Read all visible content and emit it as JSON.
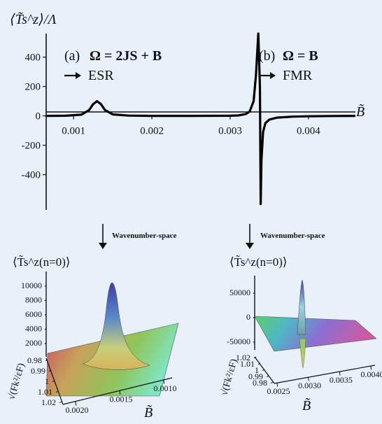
{
  "figure": {
    "background": "#e8f1fa",
    "main_ylabel": "⟨T̃s^z⟩/Λ",
    "main_xlabel": "B̃",
    "annotations": {
      "a_label": "(a)",
      "a_eq": "Ω = 2JS + B",
      "a_arrow_text": "ESR",
      "b_label": "(b)",
      "b_eq": "Ω = B",
      "b_arrow_text": "FMR"
    },
    "arrow_caption_left": "Wavenumber-space",
    "arrow_caption_right": "Wavenumber-space",
    "inset_left_title": "⟨T̃s^z(n=0)⟩",
    "inset_right_title": "⟨T̃s^z(n=0)⟩",
    "inset_left_xlabel": "B̃",
    "inset_right_xlabel": "B̃",
    "inset_left_ylabel": "√(Fk²/εF)",
    "inset_right_ylabel": "√(Fk²/εF)"
  },
  "chart_data": [
    {
      "type": "line",
      "x_ticks": [
        "0.001",
        "0.002",
        "0.003",
        "0.004"
      ],
      "x_tick_values": [
        0.001,
        0.002,
        0.003,
        0.004
      ],
      "y_ticks": [
        "400",
        "200",
        "0",
        "-200",
        "-400"
      ],
      "y_tick_values": [
        400,
        200,
        0,
        -200,
        -400
      ],
      "xlim": [
        0.00065,
        0.0046
      ],
      "ylim": [
        -640,
        560
      ],
      "series": [
        {
          "x": [
            0.00065,
            0.0009,
            0.0011,
            0.0012,
            0.00125,
            0.0013,
            0.00135,
            0.0014,
            0.0015,
            0.0017,
            0.002,
            0.0025,
            0.003,
            0.0031,
            0.0032,
            0.00325,
            0.0033,
            0.00333,
            0.00336,
            0.00338,
            0.00339,
            0.0034,
            0.00342,
            0.00345,
            0.0035,
            0.0036,
            0.0038,
            0.004,
            0.0043,
            0.0046
          ],
          "y": [
            0,
            1,
            8,
            40,
            80,
            100,
            80,
            40,
            10,
            2,
            0,
            0,
            1,
            3,
            12,
            30,
            100,
            280,
            560,
            200,
            -600,
            -300,
            -110,
            -50,
            -25,
            -12,
            -5,
            -3,
            -1,
            0
          ]
        }
      ]
    },
    {
      "type": "heatmap",
      "title": "⟨T̃s^z(n=0)⟩",
      "z_ticks": [
        "10000",
        "8000",
        "6000",
        "4000",
        "2000"
      ],
      "x_ticks": [
        "0.0020",
        "0.0015",
        "0.0010"
      ],
      "y_ticks": [
        "0.98",
        "0.99",
        "1",
        "1.01",
        "1.02"
      ],
      "peak_z": 10000,
      "peak_x": 0.0013,
      "peak_y": 1.0
    },
    {
      "type": "heatmap",
      "title": "⟨T̃s^z(n=0)⟩",
      "z_ticks": [
        "50000",
        "0",
        "-50000"
      ],
      "x_ticks": [
        "0.0025",
        "0.0030",
        "0.0035",
        "0.0040"
      ],
      "y_ticks": [
        "1.02",
        "1.01",
        "1",
        "0.99",
        "0.98"
      ],
      "peak_z": 80000,
      "trough_z": -70000,
      "peak_x": 0.0033,
      "peak_y": 1.0
    }
  ]
}
